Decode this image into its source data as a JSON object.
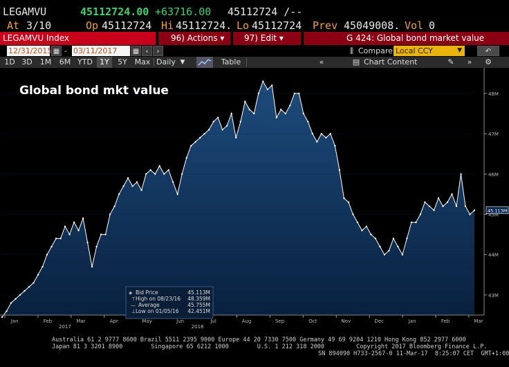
{
  "quote": {
    "ticker": "LEGAMVU",
    "last": "45112724.00",
    "change": "+63716.00",
    "bid_ask": "45112724 /--",
    "at_label": "At",
    "at_value": "3/10",
    "op_label": "Op",
    "op_value": "45112724",
    "hi_label": "Hi",
    "hi_value": "45112724.",
    "lo_label": "Lo",
    "lo_value": "45112724",
    "prev_label": "Prev",
    "prev_value": "45049008.",
    "vol_label": "Vol",
    "vol_value": "0"
  },
  "title_bar": {
    "security": "LEGAMVU Index",
    "actions_label": "96) Actions ▾",
    "edit_label": "97) Edit ▾",
    "page_title": "G 424: Global bond market value"
  },
  "date_bar": {
    "start_date": "12/31/2015",
    "end_date": "03/11/2017",
    "compare_label": "Compare",
    "currency_value": "Local CCY"
  },
  "toolbar": {
    "ranges": [
      "1D",
      "3D",
      "1M",
      "6M",
      "YTD",
      "1Y",
      "5Y",
      "Max"
    ],
    "active_range": "1Y",
    "frequency": "Daily",
    "table_label": "Table",
    "chart_content_label": "Chart Content"
  },
  "legend": {
    "bid_label": "Bid Price",
    "bid_value": "45.113M",
    "high_label": "High on 08/23/16",
    "high_value": "48.359M",
    "avg_label": "Average",
    "avg_value": "45.755M",
    "low_label": "Low on 01/05/16",
    "low_value": "42.451M"
  },
  "colors": {
    "line": "#ffffff",
    "fill_top": "#1d4b7c",
    "fill_bottom": "#08203e",
    "bg": "#000000",
    "last_tag_bg": "#0d2a55"
  },
  "chart_data": {
    "type": "area",
    "title": "Global bond mkt value",
    "ylabel": "",
    "xlabel": "",
    "y_unit": "M",
    "ylim": [
      42.5,
      48.6
    ],
    "yticks": [
      43,
      44,
      45,
      46,
      47,
      48
    ],
    "ytick_labels": [
      "43M",
      "44M",
      "45M",
      "46M",
      "47M",
      "48M"
    ],
    "xticks": [
      "Jan",
      "Feb",
      "Mar",
      "Apr",
      "May",
      "Jun",
      "Jul",
      "Aug",
      "Sep",
      "Oct",
      "Nov",
      "Dec",
      "Jan",
      "Feb",
      "Mar"
    ],
    "year_labels": [
      {
        "label": "2016",
        "at": "Jun"
      },
      {
        "label": "2017",
        "at": "Feb"
      }
    ],
    "last_value_label": "45.113M",
    "grid": false,
    "series": [
      {
        "values": [
          42.45,
          42.6,
          42.8,
          42.9,
          43.0,
          43.1,
          43.2,
          43.3,
          43.5,
          43.7,
          44.0,
          44.2,
          44.4,
          44.4,
          44.7,
          44.5,
          44.8,
          44.6,
          44.9,
          44.3,
          43.7,
          44.2,
          44.5,
          44.5,
          45.0,
          45.2,
          45.5,
          45.7,
          45.9,
          45.7,
          45.8,
          45.6,
          46.0,
          46.1,
          46.0,
          46.2,
          46.0,
          46.1,
          45.8,
          45.5,
          46.0,
          46.4,
          46.7,
          46.8,
          46.9,
          47.0,
          47.1,
          47.3,
          47.4,
          47.1,
          47.2,
          47.5,
          46.9,
          47.3,
          47.8,
          47.6,
          47.5,
          48.0,
          48.3,
          48.1,
          48.2,
          47.4,
          47.6,
          47.5,
          47.7,
          48.0,
          48.0,
          47.5,
          47.3,
          47.0,
          46.8,
          47.0,
          46.9,
          47.0,
          46.7,
          46.1,
          45.4,
          45.3,
          45.0,
          44.8,
          44.6,
          44.7,
          44.5,
          44.4,
          44.2,
          44.0,
          44.1,
          44.4,
          44.2,
          44.0,
          44.4,
          44.8,
          44.8,
          45.0,
          45.3,
          45.2,
          45.1,
          45.4,
          45.2,
          45.3,
          45.5,
          45.2,
          46.0,
          45.2,
          45.0,
          45.1
        ]
      }
    ]
  },
  "footer": {
    "line1": "Australia 61 2 9777 8600 Brazil 5511 2395 9000 Europe 44 20 7330 7500 Germany 49 69 9204 1210 Hong Kong 852 2977 6000",
    "line2": "Japan 81 3 3201 8900        Singapore 65 6212 1000        U.S. 1 212 318 2000         Copyright 2017 Bloomberg Finance L.P.",
    "line3": "SN 894090 H733-2567-0 11-Mar-17  8:25:07 CET  GMT+1:00"
  }
}
